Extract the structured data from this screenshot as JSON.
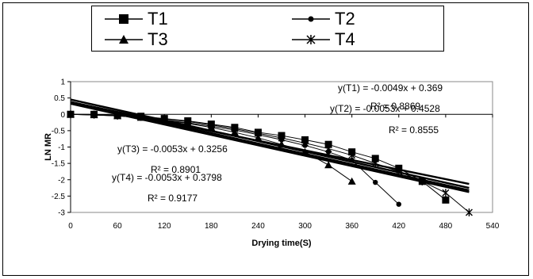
{
  "chart_data": {
    "type": "scatter",
    "xlabel": "Drying time(S)",
    "ylabel": "LN MR",
    "xlim": [
      0,
      540
    ],
    "ylim": [
      -3,
      1
    ],
    "xticks": [
      0,
      60,
      120,
      180,
      240,
      300,
      360,
      420,
      480,
      540
    ],
    "yticks": [
      1,
      0.5,
      0,
      -0.5,
      -1,
      -1.5,
      -2,
      -2.5,
      -3
    ],
    "legend_position": "top",
    "series": [
      {
        "name": "T1",
        "marker": "square",
        "x": [
          0,
          30,
          60,
          90,
          120,
          150,
          180,
          210,
          240,
          270,
          300,
          330,
          360,
          390,
          420,
          450,
          480
        ],
        "y": [
          0,
          0,
          -0.03,
          -0.06,
          -0.13,
          -0.2,
          -0.3,
          -0.4,
          -0.55,
          -0.65,
          -0.78,
          -0.92,
          -1.15,
          -1.35,
          -1.65,
          -2.05,
          -2.62
        ]
      },
      {
        "name": "T2",
        "marker": "circle",
        "x": [
          0,
          30,
          60,
          90,
          120,
          150,
          180,
          210,
          240,
          270,
          300,
          330,
          360,
          390,
          420
        ],
        "y": [
          0,
          -0.02,
          -0.05,
          -0.1,
          -0.17,
          -0.26,
          -0.36,
          -0.48,
          -0.62,
          -0.78,
          -0.95,
          -1.15,
          -1.4,
          -2.08,
          -2.75
        ]
      },
      {
        "name": "T3",
        "marker": "triangle",
        "x": [
          0,
          30,
          60,
          90,
          120,
          150,
          180,
          210,
          240,
          270,
          300,
          330,
          360
        ],
        "y": [
          0,
          -0.02,
          -0.05,
          -0.1,
          -0.18,
          -0.28,
          -0.4,
          -0.55,
          -0.72,
          -0.92,
          -1.15,
          -1.55,
          -2.05
        ]
      },
      {
        "name": "T4",
        "marker": "star",
        "x": [
          0,
          30,
          60,
          90,
          120,
          150,
          180,
          210,
          240,
          270,
          300,
          330,
          360,
          390,
          420,
          450,
          480,
          510
        ],
        "y": [
          0,
          -0.01,
          -0.04,
          -0.08,
          -0.14,
          -0.22,
          -0.32,
          -0.44,
          -0.58,
          -0.72,
          -0.88,
          -1.05,
          -1.25,
          -1.5,
          -1.75,
          -2.05,
          -2.4,
          -3
        ]
      }
    ],
    "trendlines": [
      {
        "series": "T1",
        "slope": -0.0049,
        "intercept": 0.369
      },
      {
        "series": "T2",
        "slope": -0.0053,
        "intercept": 0.4528
      },
      {
        "series": "T3",
        "slope": -0.0053,
        "intercept": 0.3256
      },
      {
        "series": "T4",
        "slope": -0.0053,
        "intercept": 0.3798
      }
    ],
    "annotations": [
      {
        "text": "y(T1) = -0.0049x + 0.369"
      },
      {
        "text": "R² = 0.8869"
      },
      {
        "text": "y(T2) = -0.0053x + 0.4528"
      },
      {
        "text": "R² = 0.8555"
      },
      {
        "text": "y(T3) = -0.0053x + 0.3256"
      },
      {
        "text": "R² = 0.8901"
      },
      {
        "text": "y(T4) = -0.0053x + 0.3798"
      },
      {
        "text": "R² = 0.9177"
      }
    ]
  }
}
